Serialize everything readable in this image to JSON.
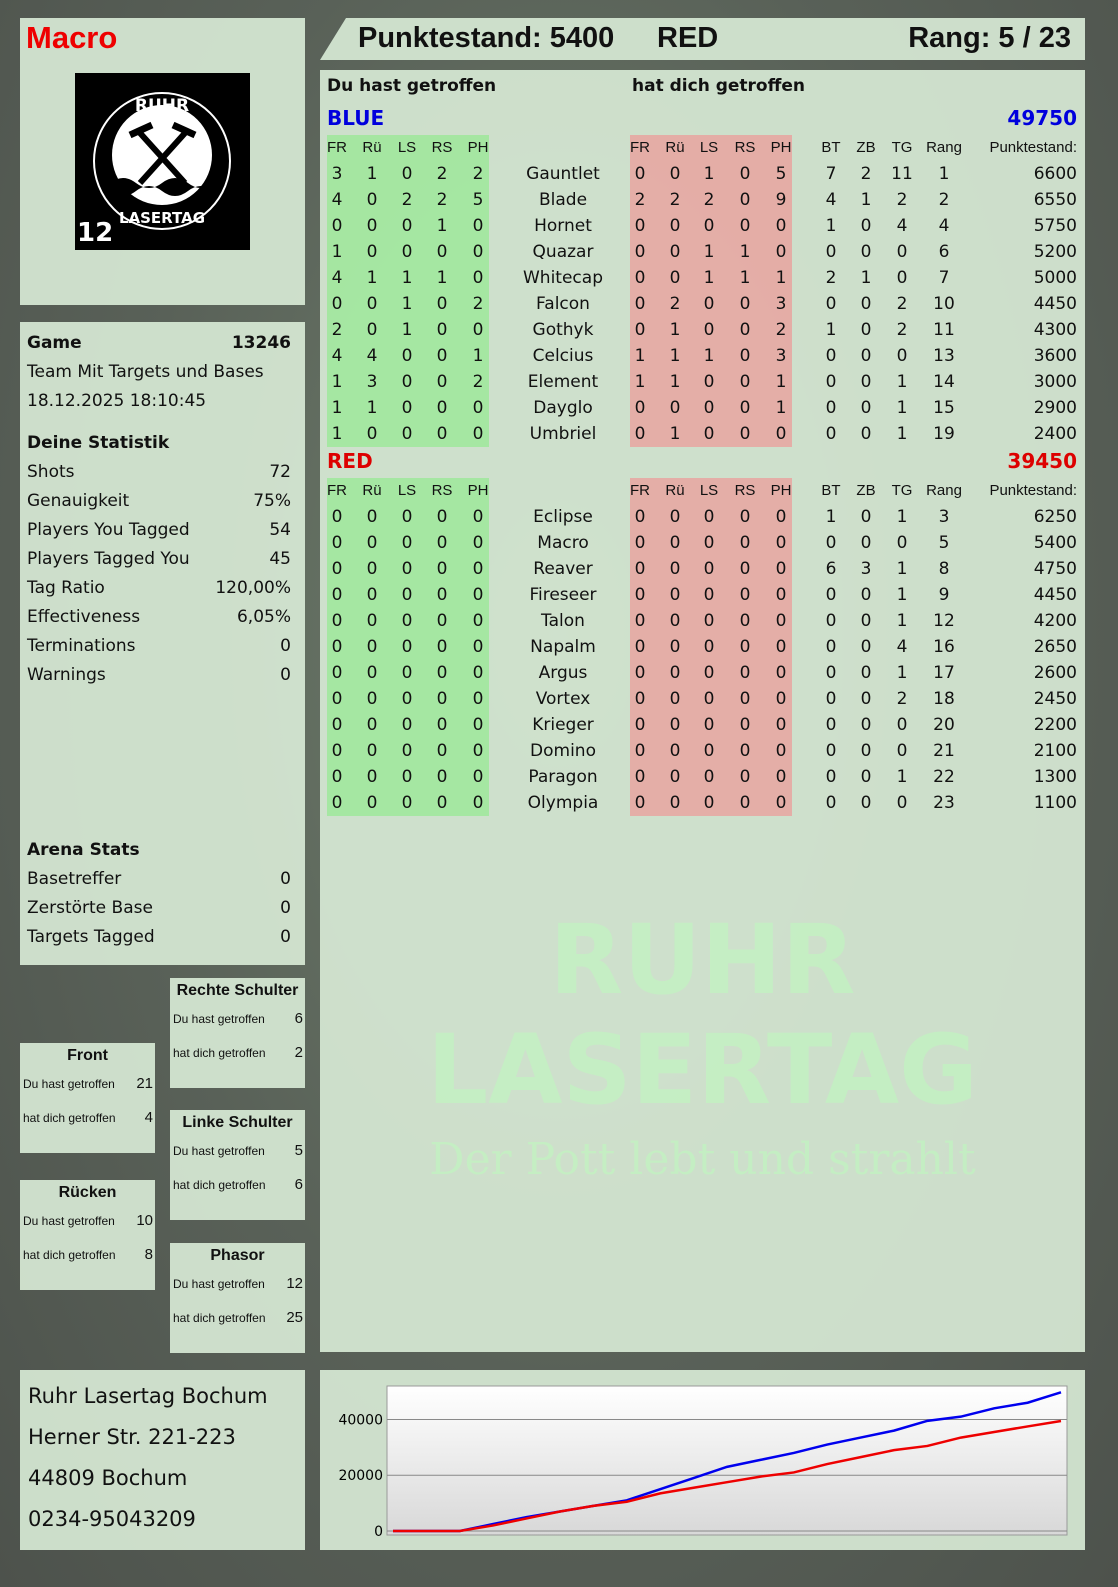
{
  "header": {
    "player": "Macro",
    "score_label": "Punktestand: 5400",
    "team": "RED",
    "rank_label": "Rang: 5 / 23"
  },
  "logo": {
    "text_top": "RUHR",
    "text_bottom": "LASERTAG",
    "badge": "12"
  },
  "game": {
    "label": "Game",
    "id": "13246",
    "mode": "Team Mit Targets und Bases",
    "datetime": "18.12.2025 18:10:45"
  },
  "stats": {
    "title": "Deine Statistik",
    "items": [
      {
        "label": "Shots",
        "value": "72"
      },
      {
        "label": "Genauigkeit",
        "value": "75%"
      },
      {
        "label": "Players You Tagged",
        "value": "54"
      },
      {
        "label": "Players Tagged You",
        "value": "45"
      },
      {
        "label": "Tag Ratio",
        "value": "120,00%"
      },
      {
        "label": "Effectiveness",
        "value": "6,05%"
      },
      {
        "label": "Terminations",
        "value": "0"
      },
      {
        "label": "Warnings",
        "value": "0"
      }
    ]
  },
  "arena": {
    "title": "Arena Stats",
    "items": [
      {
        "label": "Basetreffer",
        "value": "0"
      },
      {
        "label": "Zerstörte Base",
        "value": "0"
      },
      {
        "label": "Targets Tagged",
        "value": "0"
      }
    ]
  },
  "hitzones": [
    {
      "title": "Rechte Schulter",
      "hit_label": "Du hast getroffen",
      "hit": "6",
      "got_label": "hat dich getroffen",
      "got": "2"
    },
    {
      "title": "Front",
      "hit_label": "Du hast getroffen",
      "hit": "21",
      "got_label": "hat dich getroffen",
      "got": "4"
    },
    {
      "title": "Linke Schulter",
      "hit_label": "Du hast getroffen",
      "hit": "5",
      "got_label": "hat dich getroffen",
      "got": "6"
    },
    {
      "title": "Rücken",
      "hit_label": "Du hast getroffen",
      "hit": "10",
      "got_label": "hat dich getroffen",
      "got": "8"
    },
    {
      "title": "Phasor",
      "hit_label": "Du hast getroffen",
      "hit": "12",
      "got_label": "hat dich getroffen",
      "got": "25"
    }
  ],
  "table": {
    "you_hit": "Du hast getroffen",
    "hit_you": "hat dich getroffen",
    "columns": [
      "FR",
      "Rü",
      "LS",
      "RS",
      "PH",
      "",
      "FR",
      "Rü",
      "LS",
      "RS",
      "PH",
      "BT",
      "ZB",
      "TG",
      "Rang",
      "Punktestand:"
    ],
    "teams": [
      {
        "name": "BLUE",
        "score": "49750",
        "color": "#0000dd",
        "players": [
          [
            "3",
            "1",
            "0",
            "2",
            "2",
            "Gauntlet",
            "0",
            "0",
            "1",
            "0",
            "5",
            "7",
            "2",
            "11",
            "1",
            "6600"
          ],
          [
            "4",
            "0",
            "2",
            "2",
            "5",
            "Blade",
            "2",
            "2",
            "2",
            "0",
            "9",
            "4",
            "1",
            "2",
            "2",
            "6550"
          ],
          [
            "0",
            "0",
            "0",
            "1",
            "0",
            "Hornet",
            "0",
            "0",
            "0",
            "0",
            "0",
            "1",
            "0",
            "4",
            "4",
            "5750"
          ],
          [
            "1",
            "0",
            "0",
            "0",
            "0",
            "Quazar",
            "0",
            "0",
            "1",
            "1",
            "0",
            "0",
            "0",
            "0",
            "6",
            "5200"
          ],
          [
            "4",
            "1",
            "1",
            "1",
            "0",
            "Whitecap",
            "0",
            "0",
            "1",
            "1",
            "1",
            "2",
            "1",
            "0",
            "7",
            "5000"
          ],
          [
            "0",
            "0",
            "1",
            "0",
            "2",
            "Falcon",
            "0",
            "2",
            "0",
            "0",
            "3",
            "0",
            "0",
            "2",
            "10",
            "4450"
          ],
          [
            "2",
            "0",
            "1",
            "0",
            "0",
            "Gothyk",
            "0",
            "1",
            "0",
            "0",
            "2",
            "1",
            "0",
            "2",
            "11",
            "4300"
          ],
          [
            "4",
            "4",
            "0",
            "0",
            "1",
            "Celcius",
            "1",
            "1",
            "1",
            "0",
            "3",
            "0",
            "0",
            "0",
            "13",
            "3600"
          ],
          [
            "1",
            "3",
            "0",
            "0",
            "2",
            "Element",
            "1",
            "1",
            "0",
            "0",
            "1",
            "0",
            "0",
            "1",
            "14",
            "3000"
          ],
          [
            "1",
            "1",
            "0",
            "0",
            "0",
            "Dayglo",
            "0",
            "0",
            "0",
            "0",
            "1",
            "0",
            "0",
            "1",
            "15",
            "2900"
          ],
          [
            "1",
            "0",
            "0",
            "0",
            "0",
            "Umbriel",
            "0",
            "1",
            "0",
            "0",
            "0",
            "0",
            "0",
            "1",
            "19",
            "2400"
          ]
        ]
      },
      {
        "name": "RED",
        "score": "39450",
        "color": "#dd0000",
        "players": [
          [
            "0",
            "0",
            "0",
            "0",
            "0",
            "Eclipse",
            "0",
            "0",
            "0",
            "0",
            "0",
            "1",
            "0",
            "1",
            "3",
            "6250"
          ],
          [
            "0",
            "0",
            "0",
            "0",
            "0",
            "Macro",
            "0",
            "0",
            "0",
            "0",
            "0",
            "0",
            "0",
            "0",
            "5",
            "5400"
          ],
          [
            "0",
            "0",
            "0",
            "0",
            "0",
            "Reaver",
            "0",
            "0",
            "0",
            "0",
            "0",
            "6",
            "3",
            "1",
            "8",
            "4750"
          ],
          [
            "0",
            "0",
            "0",
            "0",
            "0",
            "Fireseer",
            "0",
            "0",
            "0",
            "0",
            "0",
            "0",
            "0",
            "1",
            "9",
            "4450"
          ],
          [
            "0",
            "0",
            "0",
            "0",
            "0",
            "Talon",
            "0",
            "0",
            "0",
            "0",
            "0",
            "0",
            "0",
            "1",
            "12",
            "4200"
          ],
          [
            "0",
            "0",
            "0",
            "0",
            "0",
            "Napalm",
            "0",
            "0",
            "0",
            "0",
            "0",
            "0",
            "0",
            "4",
            "16",
            "2650"
          ],
          [
            "0",
            "0",
            "0",
            "0",
            "0",
            "Argus",
            "0",
            "0",
            "0",
            "0",
            "0",
            "0",
            "0",
            "1",
            "17",
            "2600"
          ],
          [
            "0",
            "0",
            "0",
            "0",
            "0",
            "Vortex",
            "0",
            "0",
            "0",
            "0",
            "0",
            "0",
            "0",
            "2",
            "18",
            "2450"
          ],
          [
            "0",
            "0",
            "0",
            "0",
            "0",
            "Krieger",
            "0",
            "0",
            "0",
            "0",
            "0",
            "0",
            "0",
            "0",
            "20",
            "2200"
          ],
          [
            "0",
            "0",
            "0",
            "0",
            "0",
            "Domino",
            "0",
            "0",
            "0",
            "0",
            "0",
            "0",
            "0",
            "0",
            "21",
            "2100"
          ],
          [
            "0",
            "0",
            "0",
            "0",
            "0",
            "Paragon",
            "0",
            "0",
            "0",
            "0",
            "0",
            "0",
            "0",
            "1",
            "22",
            "1300"
          ],
          [
            "0",
            "0",
            "0",
            "0",
            "0",
            "Olympia",
            "0",
            "0",
            "0",
            "0",
            "0",
            "0",
            "0",
            "0",
            "23",
            "1100"
          ]
        ]
      }
    ]
  },
  "address": [
    "Ruhr Lasertag Bochum",
    "Herner Str. 221-223",
    "44809 Bochum",
    "0234-95043209"
  ],
  "watermark": {
    "line1": "RUHR",
    "line2": "LASERTAG",
    "line3": "Der Pott lebt und strahlt"
  },
  "chart_data": {
    "type": "line",
    "ylim": [
      0,
      52000
    ],
    "yticks": [
      "40000",
      "20000",
      "0"
    ],
    "ytick_values": [
      40000,
      20000,
      0
    ],
    "grid": true,
    "series": [
      {
        "color": "#0000ee",
        "values": [
          0,
          0,
          0,
          2500,
          5000,
          7000,
          9000,
          11000,
          15000,
          19000,
          23000,
          25500,
          28000,
          31000,
          33500,
          36000,
          39500,
          41000,
          44000,
          46000,
          49750
        ]
      },
      {
        "color": "#ee0000",
        "values": [
          0,
          0,
          0,
          2000,
          4500,
          7000,
          9000,
          10500,
          13500,
          15500,
          17500,
          19500,
          21000,
          24000,
          26500,
          29000,
          30500,
          33500,
          35500,
          37500,
          39450
        ]
      }
    ]
  }
}
